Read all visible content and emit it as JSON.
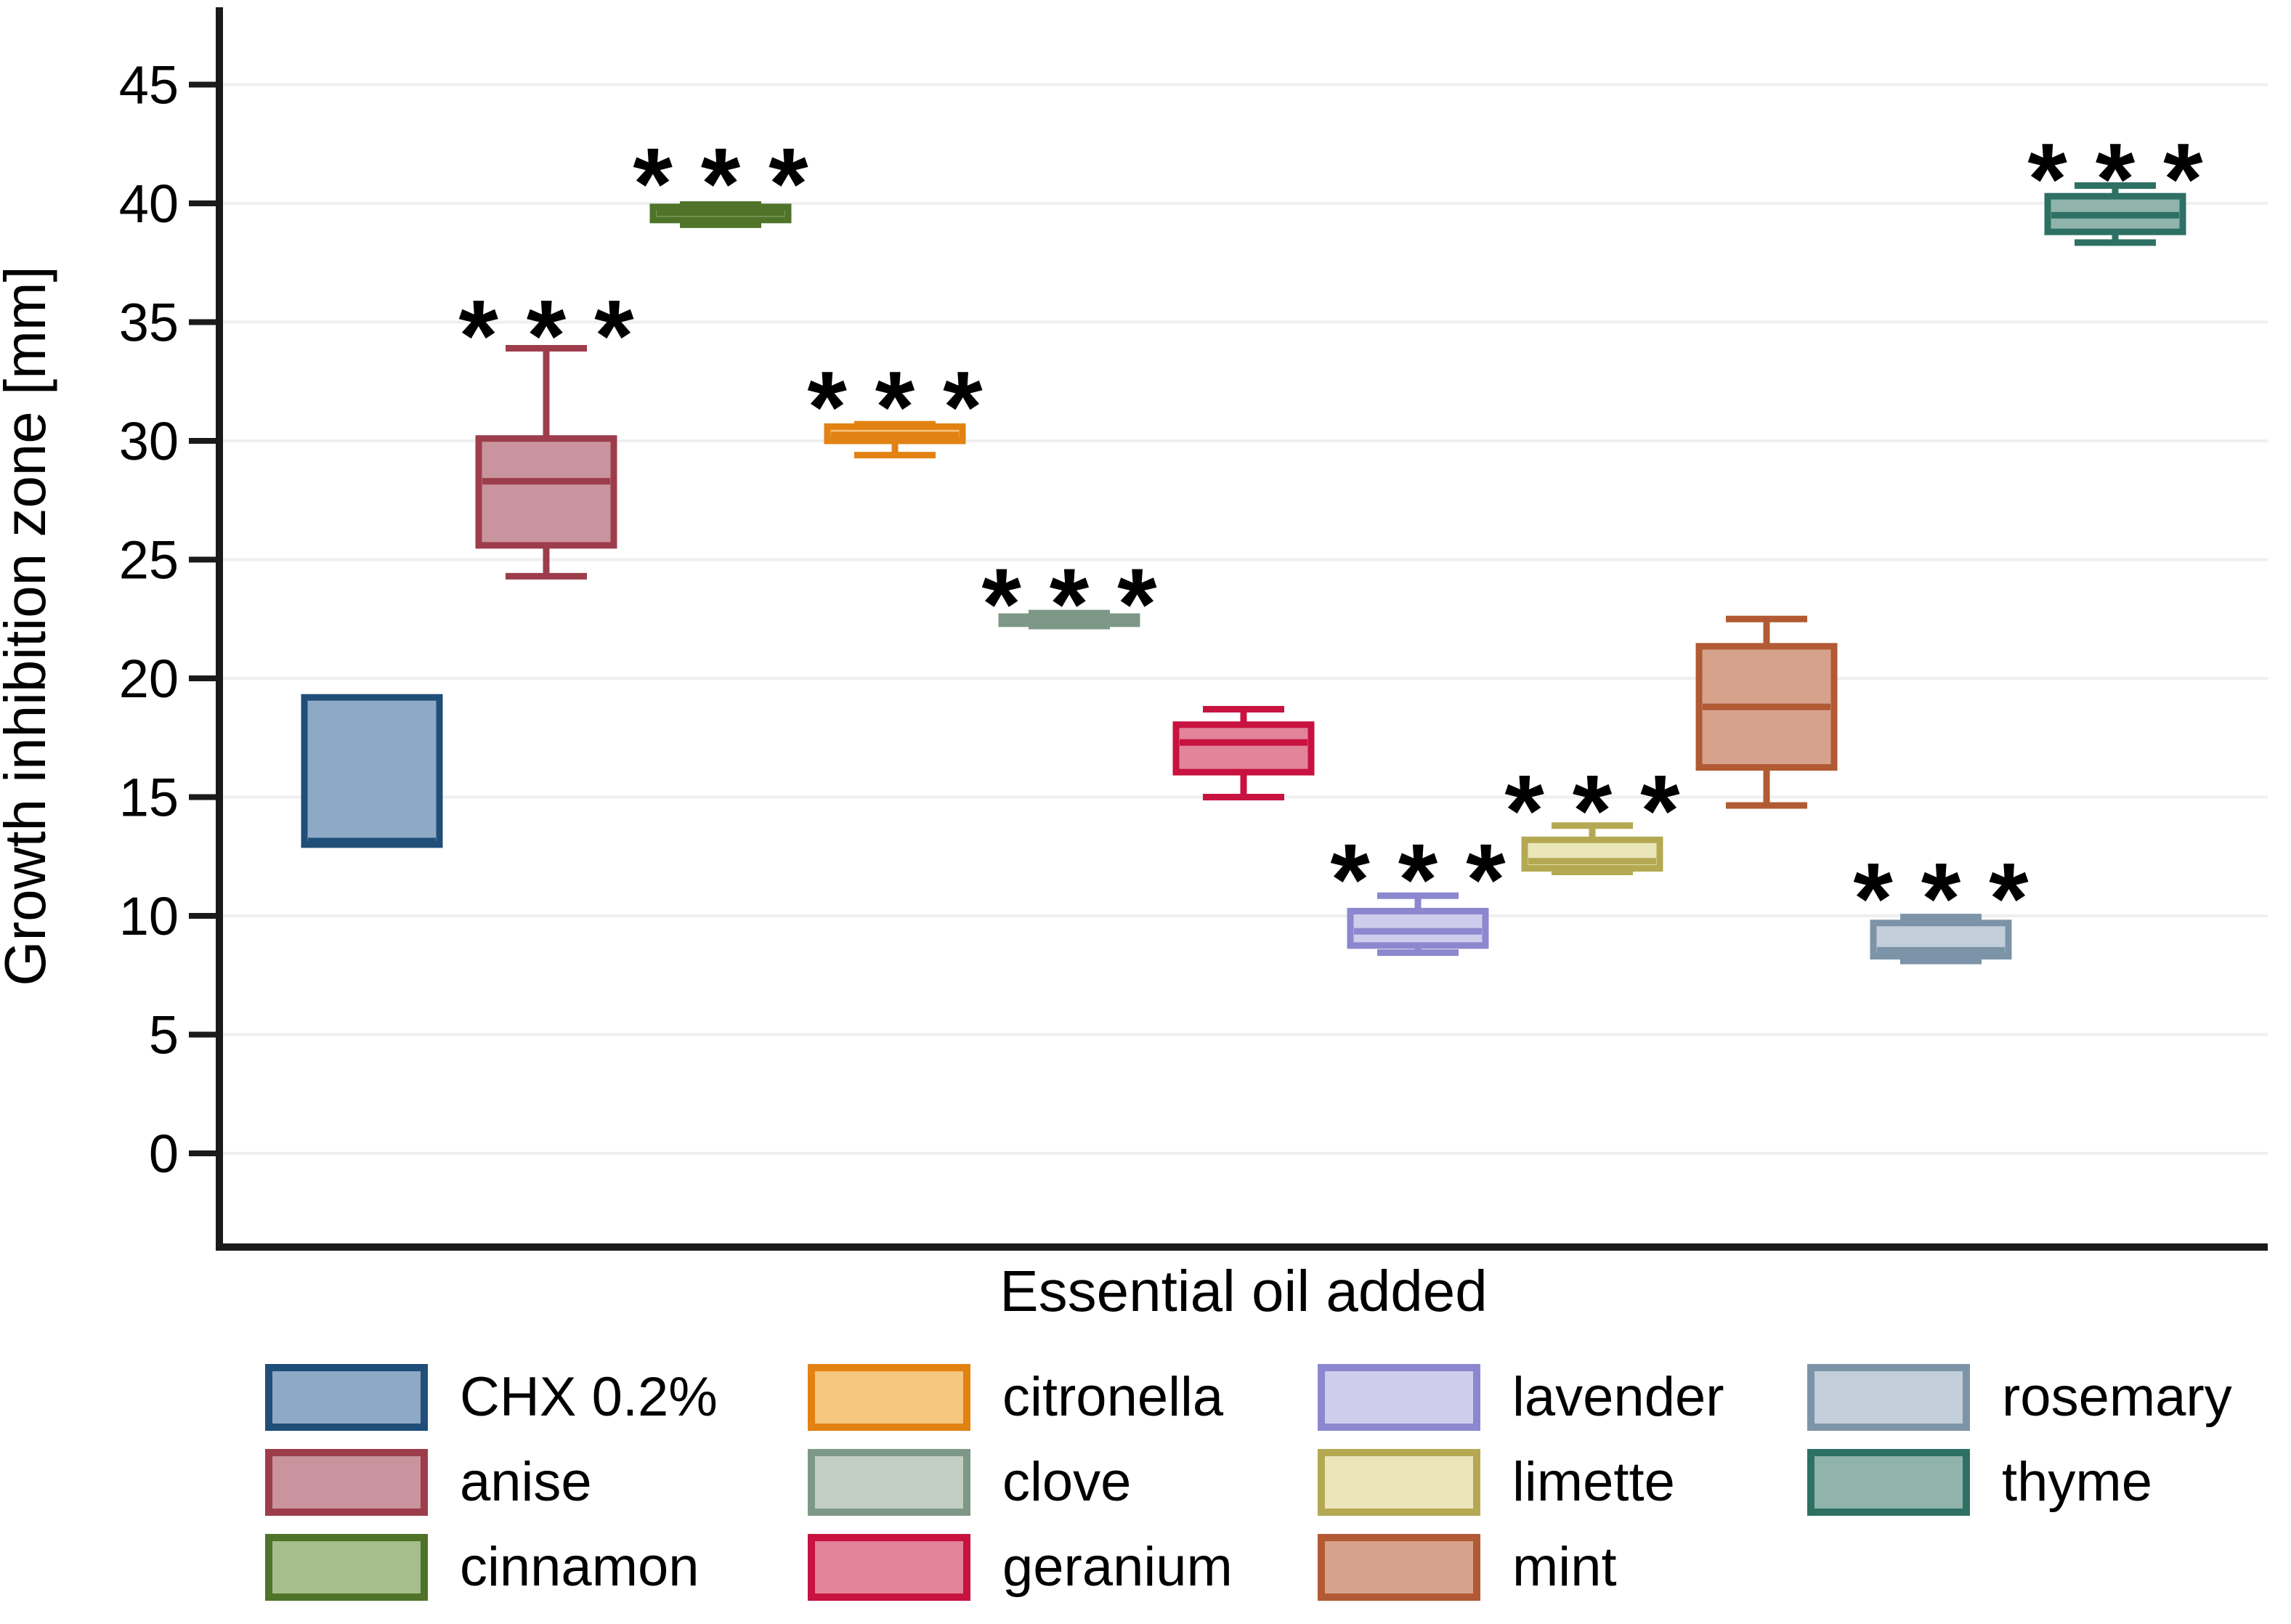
{
  "chart_data": {
    "type": "box",
    "title": "",
    "xlabel": "Essential oil added",
    "ylabel": "Growth inhibition zone [mm]",
    "ylim": [
      -3.9,
      48.4
    ],
    "yticks": [
      0,
      5,
      10,
      15,
      20,
      25,
      30,
      35,
      40,
      45
    ],
    "grid": "horizontal-light",
    "legend_position": "bottom",
    "sig_marker": "* * *",
    "series": [
      {
        "name": "CHX 0.2%",
        "min": 13.0,
        "q1": 13.0,
        "median": 13.15,
        "q3": 19.2,
        "max": 19.2,
        "significant": false,
        "star_y": null,
        "border": "#1f4e79",
        "fill": "#8ea9c6"
      },
      {
        "name": "anise",
        "min": 24.3,
        "q1": 25.6,
        "median": 28.3,
        "q3": 30.1,
        "max": 33.9,
        "significant": true,
        "star_y": 35.4,
        "border": "#9d3d4c",
        "fill": "#c9949d"
      },
      {
        "name": "cinnamon",
        "min": 39.1,
        "q1": 39.3,
        "median": 39.6,
        "q3": 39.85,
        "max": 39.95,
        "significant": true,
        "star_y": 41.8,
        "border": "#4f7328",
        "fill": "#a6be8c"
      },
      {
        "name": "citronella",
        "min": 29.4,
        "q1": 30.0,
        "median": 30.25,
        "q3": 30.6,
        "max": 30.7,
        "significant": true,
        "star_y": 32.4,
        "border": "#e28212",
        "fill": "#f6c57e"
      },
      {
        "name": "clove",
        "min": 22.2,
        "q1": 22.3,
        "median": 22.45,
        "q3": 22.6,
        "max": 22.75,
        "significant": true,
        "star_y": 24.1,
        "border": "#7e9887",
        "fill": "#c2cec2"
      },
      {
        "name": "geranium",
        "min": 15.0,
        "q1": 16.05,
        "median": 17.3,
        "q3": 18.05,
        "max": 18.7,
        "significant": false,
        "star_y": null,
        "border": "#c81240",
        "fill": "#e2849a"
      },
      {
        "name": "lavender",
        "min": 8.45,
        "q1": 8.75,
        "median": 9.35,
        "q3": 10.2,
        "max": 10.85,
        "significant": true,
        "star_y": 12.5,
        "border": "#8c87ce",
        "fill": "#d0ccec"
      },
      {
        "name": "limette",
        "min": 11.85,
        "q1": 12.0,
        "median": 12.3,
        "q3": 13.2,
        "max": 13.8,
        "significant": true,
        "star_y": 15.4,
        "border": "#b4a952",
        "fill": "#ebe6ba"
      },
      {
        "name": "mint",
        "min": 14.65,
        "q1": 16.25,
        "median": 18.8,
        "q3": 21.35,
        "max": 22.5,
        "significant": false,
        "star_y": null,
        "border": "#b15a33",
        "fill": "#d7a28c"
      },
      {
        "name": "rosemary",
        "min": 8.1,
        "q1": 8.3,
        "median": 8.55,
        "q3": 9.7,
        "max": 9.95,
        "significant": true,
        "star_y": 11.7,
        "border": "#7d94a8",
        "fill": "#c2ceda"
      },
      {
        "name": "thyme",
        "min": 38.35,
        "q1": 38.8,
        "median": 39.5,
        "q3": 40.3,
        "max": 40.75,
        "significant": true,
        "star_y": 42.0,
        "border": "#2e7164",
        "fill": "#90b4ac"
      }
    ]
  },
  "legend": {
    "columns": [
      [
        0,
        1,
        2
      ],
      [
        3,
        4,
        5
      ],
      [
        6,
        7,
        8
      ],
      [
        9,
        10
      ]
    ]
  },
  "style": {
    "background": "#ffffff",
    "axis_color": "#1a1a1a",
    "grid_color": "#efefef",
    "text_color": "#000000"
  }
}
